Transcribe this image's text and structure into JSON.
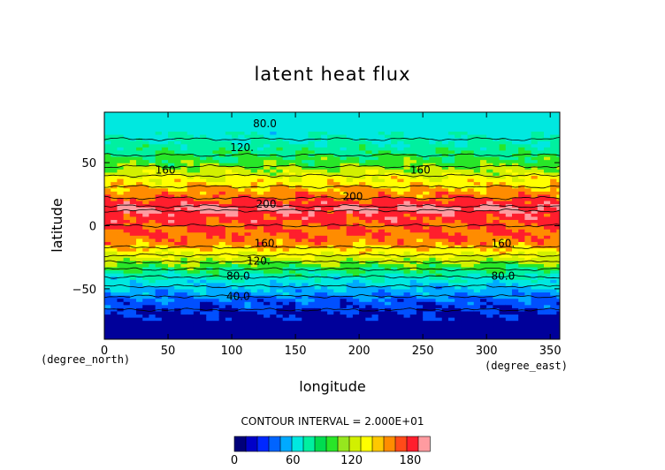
{
  "chart_data": {
    "type": "heatmap",
    "title": "latent heat flux",
    "xlabel": "longitude",
    "ylabel": "latitude",
    "x_unit_label": "(degree_east)",
    "y_unit_label": "(degree_north)",
    "xlim": [
      0,
      357.5
    ],
    "ylim": [
      -90,
      90
    ],
    "x_ticks": [
      "0",
      "50",
      "100",
      "150",
      "200",
      "250",
      "300",
      "350"
    ],
    "y_ticks": [
      "50",
      "0",
      "−50"
    ],
    "x_tick_values": [
      0,
      50,
      100,
      150,
      200,
      250,
      300,
      350
    ],
    "y_tick_values": [
      50,
      0,
      -50
    ],
    "contour_interval_text": "CONTOUR INTERVAL = 2.000E+01",
    "contour_levels": [
      0,
      20,
      40,
      60,
      80,
      100,
      120,
      140,
      160,
      180,
      200
    ],
    "contour_labels": [
      {
        "text": "80.0",
        "x": 126,
        "y": 81
      },
      {
        "text": "120.",
        "x": 108,
        "y": 62
      },
      {
        "text": "160",
        "x": 48,
        "y": 44
      },
      {
        "text": "160",
        "x": 248,
        "y": 44
      },
      {
        "text": "200",
        "x": 195,
        "y": 23
      },
      {
        "text": "200",
        "x": 127,
        "y": 17
      },
      {
        "text": "160.",
        "x": 127,
        "y": -14
      },
      {
        "text": "160.",
        "x": 313,
        "y": -14
      },
      {
        "text": "120.",
        "x": 121,
        "y": -28
      },
      {
        "text": "80.0",
        "x": 105,
        "y": -40
      },
      {
        "text": "80.0",
        "x": 313,
        "y": -40
      },
      {
        "text": "40.0",
        "x": 105,
        "y": -56
      }
    ],
    "zonal_profile": {
      "lat": [
        -90,
        -80,
        -70,
        -60,
        -54,
        -48,
        -42,
        -36,
        -30,
        -25,
        -20,
        -14,
        -8,
        0,
        8,
        14,
        20,
        26,
        32,
        38,
        44,
        50,
        56,
        62,
        70,
        80,
        90
      ],
      "value": [
        5,
        10,
        15,
        30,
        45,
        60,
        75,
        95,
        115,
        135,
        150,
        170,
        178,
        180,
        190,
        205,
        185,
        170,
        158,
        145,
        128,
        112,
        100,
        90,
        78,
        68,
        65
      ]
    },
    "colorbar": {
      "colors": [
        "#00007a",
        "#0000c8",
        "#0028ff",
        "#0064ff",
        "#00aaff",
        "#00e8e0",
        "#00f0a0",
        "#00dc50",
        "#28e628",
        "#96e61e",
        "#d2f000",
        "#ffff00",
        "#ffc800",
        "#ff8c00",
        "#ff4b19",
        "#ff1e2d",
        "#ff9ba0"
      ],
      "tick_labels": [
        "0",
        "60",
        "120",
        "180"
      ],
      "tick_values": [
        0,
        60,
        120,
        180
      ]
    }
  }
}
